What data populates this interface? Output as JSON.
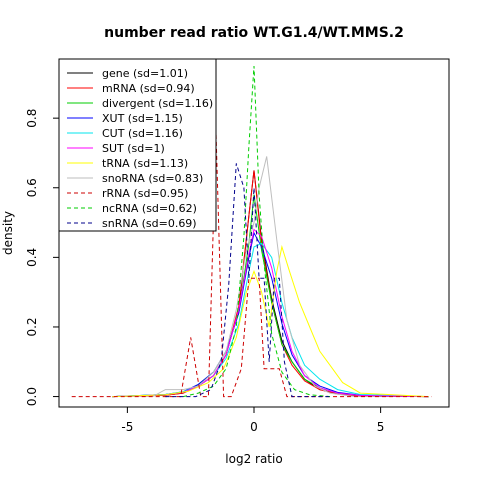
{
  "chart_data": {
    "type": "line",
    "title": "number read ratio WT.G1.4/WT.MMS.2",
    "xlabel": "log2 ratio",
    "ylabel": "density",
    "xlim": [
      -7.7,
      7.7
    ],
    "ylim": [
      -0.03,
      0.97
    ],
    "xticks": [
      -5,
      0,
      5
    ],
    "yticks": [
      0.0,
      0.2,
      0.4,
      0.6,
      0.8
    ],
    "grid": false,
    "legend_position": "top-left",
    "series": [
      {
        "name": "gene (sd=1.01)",
        "color": "#000000",
        "dash": "solid",
        "x": [
          -5.6,
          -3.5,
          -2.8,
          -2.2,
          -1.6,
          -1.1,
          -0.6,
          -0.2,
          0.0,
          0.3,
          0.7,
          1.1,
          1.5,
          2.0,
          2.6,
          3.3,
          4.2,
          6.9
        ],
        "y": [
          0.0,
          0.004,
          0.01,
          0.03,
          0.06,
          0.12,
          0.25,
          0.52,
          0.65,
          0.45,
          0.28,
          0.16,
          0.1,
          0.05,
          0.02,
          0.008,
          0.002,
          0.0
        ]
      },
      {
        "name": "mRNA (sd=0.94)",
        "color": "#ff0000",
        "dash": "solid",
        "x": [
          -5.6,
          -3.5,
          -2.8,
          -2.2,
          -1.6,
          -1.1,
          -0.6,
          -0.2,
          0.0,
          0.3,
          0.7,
          1.1,
          1.5,
          2.0,
          2.6,
          3.3,
          4.2,
          6.9
        ],
        "y": [
          0.0,
          0.004,
          0.01,
          0.03,
          0.06,
          0.12,
          0.26,
          0.52,
          0.65,
          0.44,
          0.27,
          0.15,
          0.09,
          0.045,
          0.02,
          0.007,
          0.002,
          0.0
        ]
      },
      {
        "name": "divergent (sd=1.16)",
        "color": "#00cd00",
        "dash": "solid",
        "x": [
          -5.6,
          -3.5,
          -2.8,
          -2.2,
          -1.6,
          -1.1,
          -0.6,
          -0.2,
          0.0,
          0.3,
          0.7,
          1.1,
          1.5,
          2.0,
          2.6,
          3.3,
          4.2,
          6.9
        ],
        "y": [
          0.0,
          0.006,
          0.012,
          0.035,
          0.07,
          0.13,
          0.24,
          0.44,
          0.58,
          0.42,
          0.27,
          0.15,
          0.1,
          0.05,
          0.025,
          0.01,
          0.003,
          0.0
        ]
      },
      {
        "name": "XUT (sd=1.15)",
        "color": "#0000ff",
        "dash": "solid",
        "x": [
          -5.6,
          -3.5,
          -2.8,
          -2.2,
          -1.6,
          -1.1,
          -0.6,
          -0.2,
          0.0,
          0.3,
          0.7,
          1.1,
          1.5,
          2.0,
          2.6,
          3.3,
          4.2,
          6.9
        ],
        "y": [
          0.0,
          0.006,
          0.014,
          0.035,
          0.07,
          0.13,
          0.24,
          0.4,
          0.47,
          0.43,
          0.34,
          0.21,
          0.12,
          0.06,
          0.03,
          0.012,
          0.004,
          0.0
        ]
      },
      {
        "name": "CUT (sd=1.16)",
        "color": "#00e5ee",
        "dash": "solid",
        "x": [
          -5.6,
          -3.5,
          -2.8,
          -2.2,
          -1.6,
          -1.1,
          -0.6,
          -0.2,
          0.0,
          0.3,
          0.7,
          1.1,
          1.5,
          2.0,
          2.6,
          3.3,
          4.2,
          6.9
        ],
        "y": [
          0.0,
          0.006,
          0.014,
          0.03,
          0.06,
          0.11,
          0.21,
          0.36,
          0.43,
          0.44,
          0.4,
          0.27,
          0.17,
          0.09,
          0.05,
          0.02,
          0.006,
          0.0
        ]
      },
      {
        "name": "SUT (sd=1)",
        "color": "#ff00ff",
        "dash": "solid",
        "x": [
          -5.6,
          -3.5,
          -2.8,
          -2.2,
          -1.6,
          -1.1,
          -0.6,
          -0.2,
          0.0,
          0.3,
          0.7,
          1.1,
          1.5,
          2.0,
          2.6,
          3.3,
          4.2,
          6.9
        ],
        "y": [
          0.0,
          0.005,
          0.012,
          0.03,
          0.06,
          0.12,
          0.25,
          0.41,
          0.48,
          0.46,
          0.37,
          0.23,
          0.13,
          0.06,
          0.025,
          0.01,
          0.003,
          0.0
        ]
      },
      {
        "name": "tRNA (sd=1.13)",
        "color": "#ffff00",
        "dash": "solid",
        "x": [
          -5.6,
          -3.5,
          -2.6,
          -1.8,
          -1.2,
          -0.7,
          -0.3,
          0.0,
          0.3,
          0.6,
          0.9,
          1.1,
          1.4,
          1.8,
          2.2,
          2.6,
          3.0,
          3.5,
          4.2,
          6.9
        ],
        "y": [
          0.0,
          0.005,
          0.015,
          0.04,
          0.08,
          0.17,
          0.3,
          0.36,
          0.3,
          0.2,
          0.36,
          0.43,
          0.36,
          0.27,
          0.2,
          0.13,
          0.09,
          0.04,
          0.01,
          0.0
        ]
      },
      {
        "name": "snoRNA (sd=0.83)",
        "color": "#bebebe",
        "dash": "solid",
        "x": [
          -4.0,
          -3.5,
          -2.8,
          -2.2,
          -1.6,
          -1.1,
          -0.7,
          -0.3,
          0.0,
          0.2,
          0.5,
          0.9,
          1.3,
          1.8,
          2.4,
          3.0,
          4.0
        ],
        "y": [
          0.0,
          0.02,
          0.02,
          0.03,
          0.07,
          0.13,
          0.25,
          0.42,
          0.5,
          0.6,
          0.69,
          0.45,
          0.22,
          0.09,
          0.03,
          0.01,
          0.0
        ]
      },
      {
        "name": "rRNA (sd=0.95)",
        "color": "#cd0000",
        "dash": "dashed",
        "x": [
          -7.2,
          -3.3,
          -2.9,
          -2.5,
          -2.1,
          -1.8,
          -1.5,
          -1.2,
          -0.9,
          -0.5,
          -0.2,
          0.0,
          0.2,
          0.4,
          0.7,
          1.0,
          1.3,
          1.7,
          2.2,
          7.0
        ],
        "y": [
          0.0,
          0.0,
          0.0,
          0.17,
          0.0,
          0.0,
          0.76,
          0.0,
          0.0,
          0.08,
          0.34,
          0.34,
          0.34,
          0.08,
          0.08,
          0.08,
          0.0,
          0.0,
          0.0,
          0.0
        ]
      },
      {
        "name": "ncRNA (sd=0.62)",
        "color": "#00cd00",
        "dash": "dashed",
        "x": [
          -2.8,
          -2.2,
          -1.6,
          -1.1,
          -0.7,
          -0.4,
          -0.2,
          0.0,
          0.2,
          0.4,
          0.7,
          1.1,
          1.6,
          2.2,
          3.0
        ],
        "y": [
          0.0,
          0.01,
          0.03,
          0.08,
          0.2,
          0.46,
          0.72,
          0.95,
          0.58,
          0.38,
          0.18,
          0.07,
          0.02,
          0.005,
          0.0
        ]
      },
      {
        "name": "snRNA (sd=0.69)",
        "color": "#00008b",
        "dash": "dashed",
        "x": [
          -3.5,
          -2.3,
          -1.7,
          -1.3,
          -1.0,
          -0.7,
          -0.4,
          -0.2,
          0.0,
          0.2,
          0.4,
          0.6,
          0.8,
          1.0,
          1.2,
          1.5,
          2.0,
          3.0
        ],
        "y": [
          0.0,
          0.0,
          0.02,
          0.1,
          0.32,
          0.67,
          0.6,
          0.34,
          0.6,
          0.34,
          0.34,
          0.1,
          0.34,
          0.34,
          0.1,
          0.0,
          0.0,
          0.0
        ]
      }
    ]
  }
}
